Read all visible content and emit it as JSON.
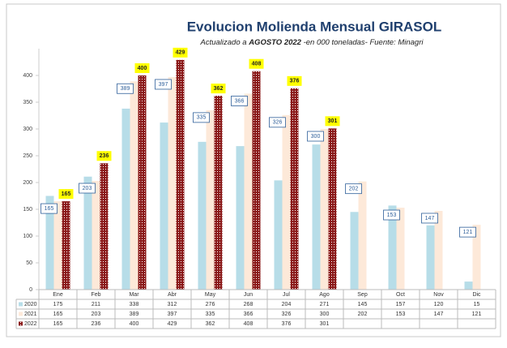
{
  "chart_data": {
    "type": "bar",
    "title": "Evolucion Molienda Mensual GIRASOL",
    "subtitle": [
      "Actualizado a ",
      "AGOSTO  2022",
      "  -en 000 toneladas-  Fuente: Minagri"
    ],
    "categories": [
      "Ene",
      "Feb",
      "Mar",
      "Abr",
      "May",
      "Jun",
      "Jul",
      "Ago",
      "Sep",
      "Oct",
      "Nov",
      "Dic"
    ],
    "series": [
      {
        "name": "2020",
        "color": "#b7dde8",
        "values": [
          175,
          211,
          338,
          312,
          276,
          268,
          204,
          271,
          145,
          157,
          120,
          15
        ]
      },
      {
        "name": "2021",
        "color": "#fde9d9",
        "values": [
          165,
          203,
          389,
          397,
          335,
          366,
          326,
          300,
          202,
          153,
          147,
          121
        ],
        "data_labels": "box"
      },
      {
        "name": "2022",
        "color": "#8b1a1a",
        "pattern": true,
        "values": [
          165,
          236,
          400,
          429,
          362,
          408,
          376,
          301,
          null,
          null,
          null,
          null
        ],
        "data_labels": "yellow"
      }
    ],
    "ylim": [
      0,
      450
    ],
    "yticks": [
      0,
      50,
      100,
      150,
      200,
      250,
      300,
      350,
      400
    ],
    "data_table": true
  }
}
